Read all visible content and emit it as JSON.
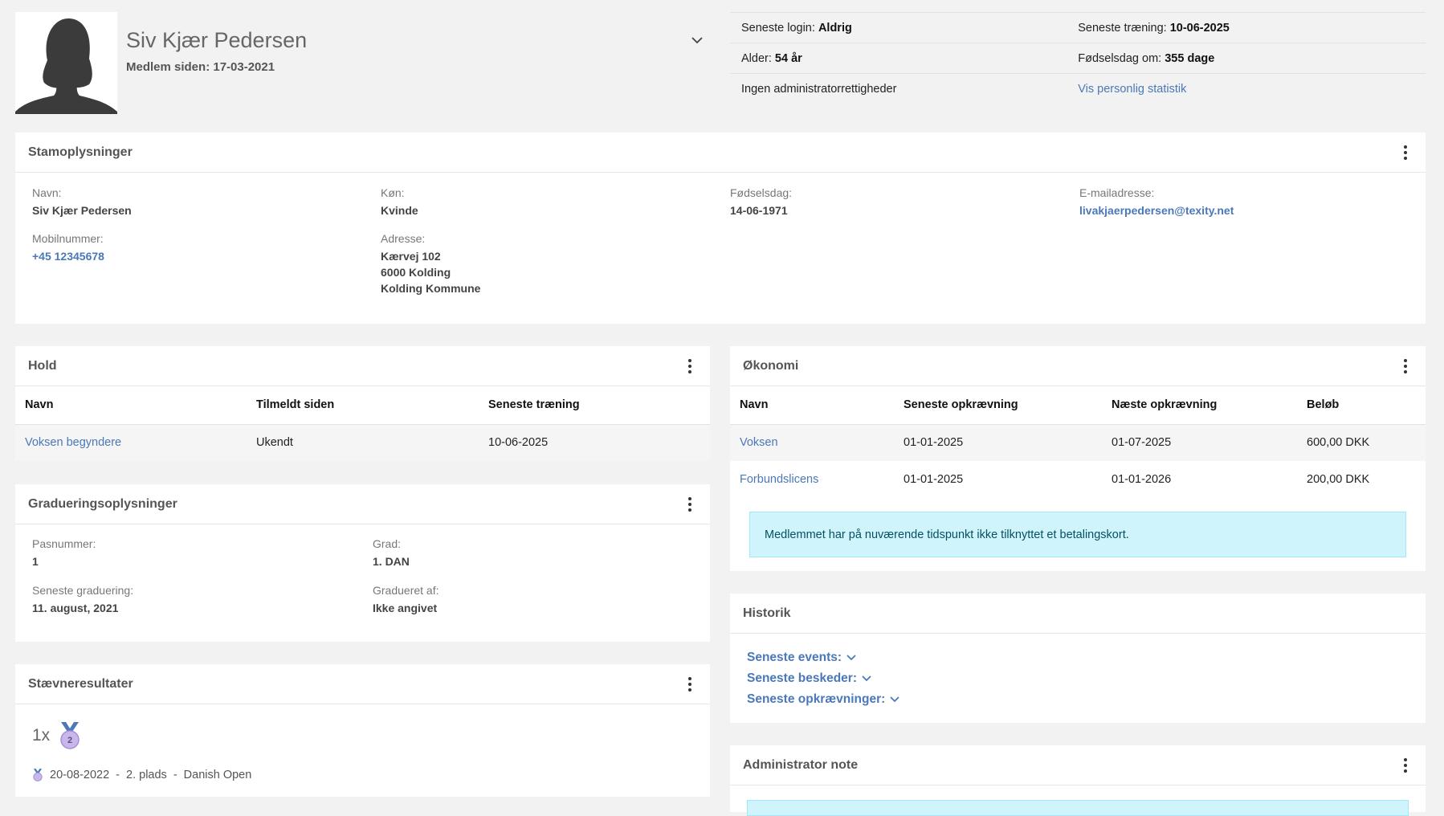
{
  "profile": {
    "name": "Siv Kjær Pedersen",
    "member_since_label": "Medlem siden:",
    "member_since": "17-03-2021"
  },
  "info": {
    "last_login_label": "Seneste login:",
    "last_login": "Aldrig",
    "last_training_label": "Seneste træning:",
    "last_training": "10-06-2025",
    "age_label": "Alder:",
    "age": "54 år",
    "birthday_in_label": "Fødselsdag om:",
    "birthday_in": "355 dage",
    "admin_rights": "Ingen administratorrettigheder",
    "stats_link": "Vis personlig statistik"
  },
  "stamoplysninger": {
    "title": "Stamoplysninger",
    "name_label": "Navn:",
    "name": "Siv Kjær Pedersen",
    "gender_label": "Køn:",
    "gender": "Kvinde",
    "birthday_label": "Fødselsdag:",
    "birthday": "14-06-1971",
    "email_label": "E-mailadresse:",
    "email": "livakjaerpedersen@texity.net",
    "mobile_label": "Mobilnummer:",
    "mobile": "+45 12345678",
    "address_label": "Adresse:",
    "address_line1": "Kærvej 102",
    "address_line2": "6000 Kolding",
    "address_line3": "Kolding Kommune"
  },
  "hold": {
    "title": "Hold",
    "headers": [
      "Navn",
      "Tilmeldt siden",
      "Seneste træning"
    ],
    "rows": [
      {
        "name": "Voksen begyndere",
        "since": "Ukendt",
        "last": "10-06-2025"
      }
    ]
  },
  "graduering": {
    "title": "Gradueringsoplysninger",
    "pas_label": "Pasnummer:",
    "pas": "1",
    "grad_label": "Grad:",
    "grad": "1. DAN",
    "last_label": "Seneste graduering:",
    "last": "11. august, 2021",
    "by_label": "Gradueret af:",
    "by": "Ikke angivet"
  },
  "staevne": {
    "title": "Stævneresultater",
    "count": "1x",
    "medal_number": "2",
    "result_date": "20-08-2022",
    "result_place": "2. plads",
    "result_event": "Danish Open"
  },
  "oekonomi": {
    "title": "Økonomi",
    "headers": [
      "Navn",
      "Seneste opkrævning",
      "Næste opkrævning",
      "Beløb"
    ],
    "rows": [
      {
        "name": "Voksen",
        "last": "01-01-2025",
        "next": "01-07-2025",
        "amount": "600,00 DKK"
      },
      {
        "name": "Forbundslicens",
        "last": "01-01-2025",
        "next": "01-01-2026",
        "amount": "200,00 DKK"
      }
    ],
    "alert": "Medlemmet har på nuværende tidspunkt ikke tilknyttet et betalingskort."
  },
  "historik": {
    "title": "Historik",
    "items": [
      "Seneste events:",
      "Seneste beskeder:",
      "Seneste opkrævninger:"
    ]
  },
  "admin_note": {
    "title": "Administrator note"
  },
  "colors": {
    "link": "#4a78b8",
    "alert_bg": "#cff4fc",
    "medal": "#b9a6e0"
  }
}
